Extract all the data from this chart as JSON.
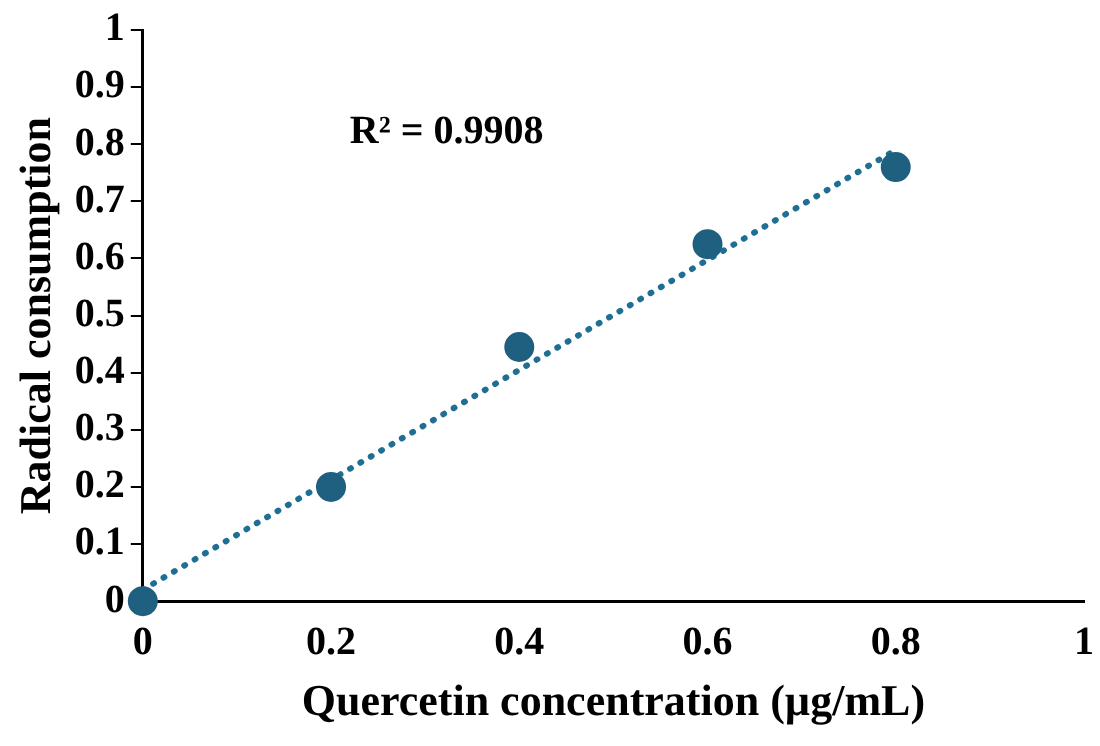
{
  "chart_data": {
    "type": "scatter",
    "xlabel": "Quercetin concentration (µg/mL)",
    "ylabel": "Radical consumption",
    "annotations": [
      "R² = 0.9908"
    ],
    "series": [
      {
        "type": "scatter",
        "color": "#1f5f80",
        "x": [
          0,
          0.2,
          0.4,
          0.6,
          0.8
        ],
        "values": [
          0,
          0.2,
          0.445,
          0.625,
          0.76
        ],
        "marker": "circle"
      },
      {
        "type": "line",
        "color": "#1f6f94",
        "x": [
          0,
          0.8
        ],
        "values": [
          0.02,
          0.79
        ],
        "line_style": "dotted",
        "marker": "none"
      }
    ],
    "xlim": [
      0,
      1
    ],
    "xticks": [
      0,
      0.2,
      0.4,
      0.6,
      0.8,
      1
    ],
    "ylim": [
      0,
      1
    ],
    "yticks": [
      0,
      0.1,
      0.2,
      0.3,
      0.4,
      0.5,
      0.6,
      0.7,
      0.8,
      0.9,
      1
    ],
    "grid": false,
    "legend": false
  }
}
